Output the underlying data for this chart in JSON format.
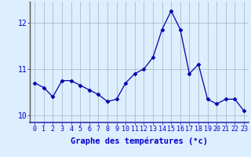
{
  "x": [
    0,
    1,
    2,
    3,
    4,
    5,
    6,
    7,
    8,
    9,
    10,
    11,
    12,
    13,
    14,
    15,
    16,
    17,
    18,
    19,
    20,
    21,
    22,
    23
  ],
  "y": [
    10.7,
    10.6,
    10.4,
    10.75,
    10.75,
    10.65,
    10.55,
    10.45,
    10.3,
    10.35,
    10.7,
    10.9,
    11.0,
    11.25,
    11.85,
    12.25,
    11.85,
    10.9,
    11.1,
    10.35,
    10.25,
    10.35,
    10.35,
    10.1
  ],
  "line_color": "#0000aa",
  "marker": "D",
  "marker_size": 2.5,
  "bg_color": "#ddeeff",
  "grid_color": "#aabbcc",
  "xlabel": "Graphe des températures (°c)",
  "xlabel_color": "#0000cc",
  "xlabel_fontsize": 7.5,
  "tick_color": "#0000cc",
  "tick_fontsize": 6,
  "ylim": [
    9.85,
    12.45
  ],
  "yticks": [
    10,
    11,
    12
  ],
  "xlim": [
    -0.5,
    23.5
  ]
}
